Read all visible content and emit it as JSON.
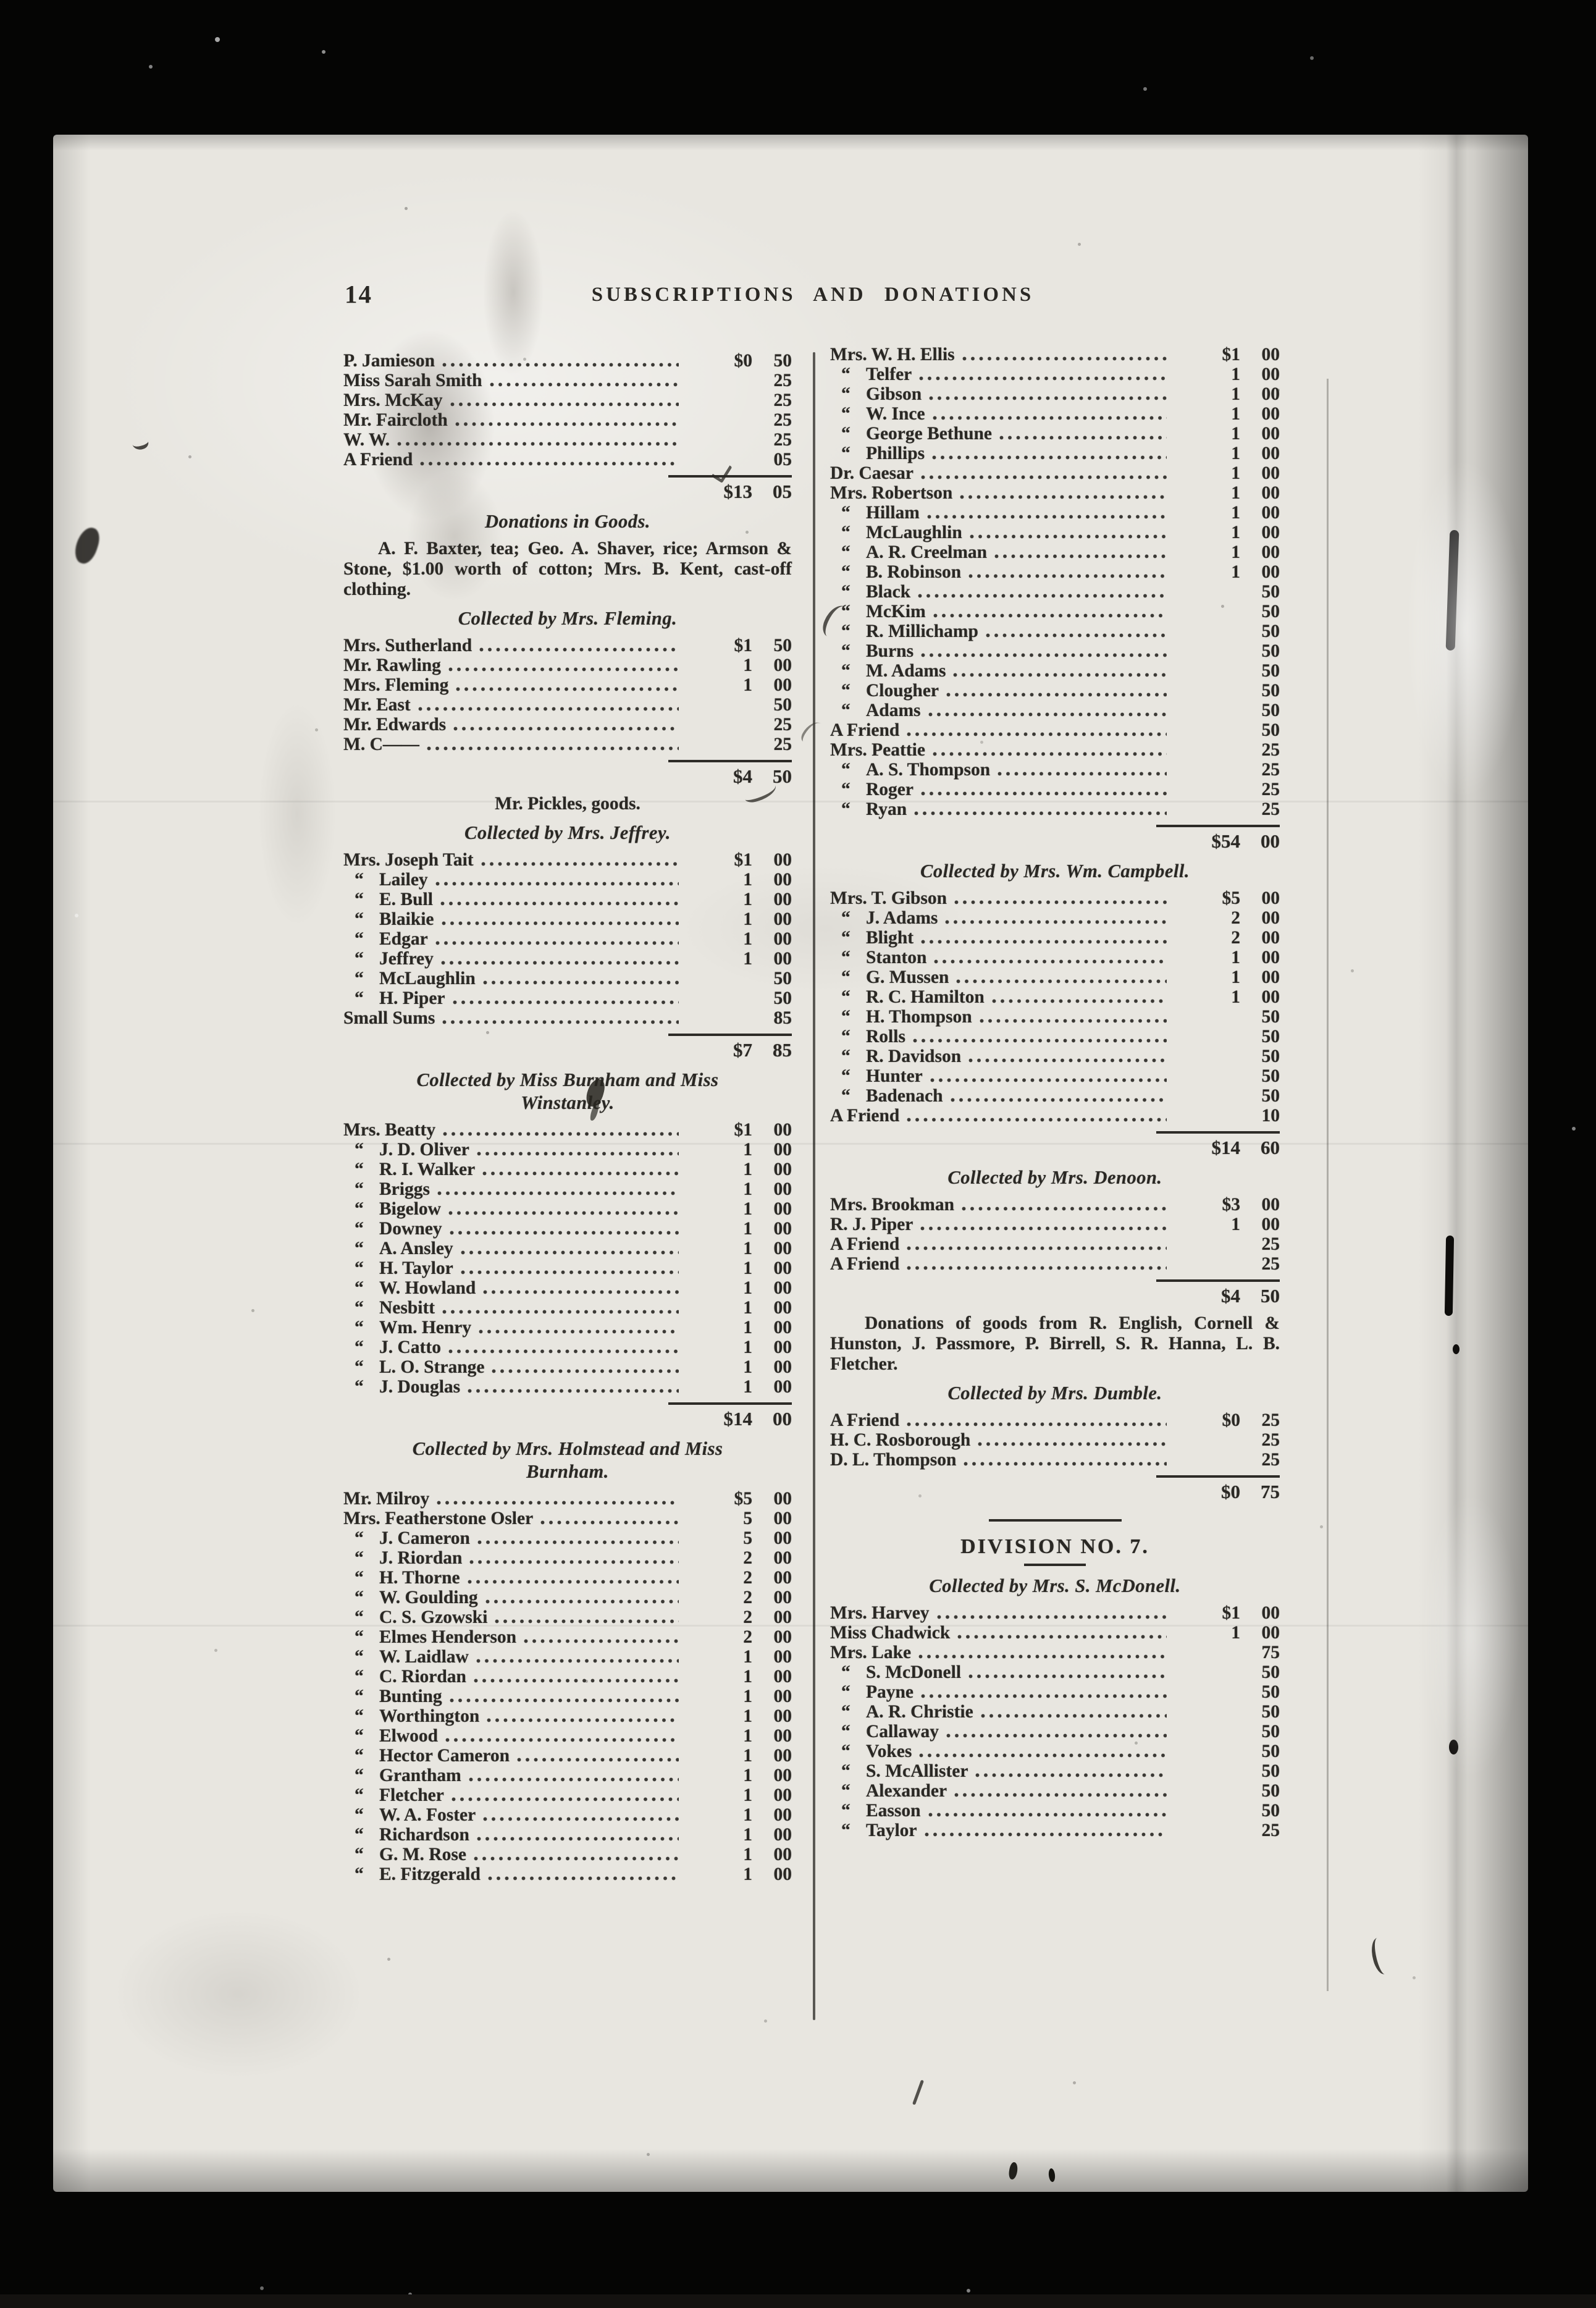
{
  "page": {
    "number": "14",
    "header": "SUBSCRIPTIONS AND DONATIONS"
  },
  "marks": {
    "ditto": "“"
  },
  "columns": [
    {
      "side": "left",
      "blocks": [
        {
          "type": "list",
          "rows": [
            {
              "name": "P. Jamieson",
              "amount": "$0 50"
            },
            {
              "name": "Miss Sarah Smith",
              "amount": "25"
            },
            {
              "name": "Mrs. McKay",
              "amount": "25"
            },
            {
              "name": "Mr. Faircloth",
              "amount": "25"
            },
            {
              "name": "W. W.",
              "amount": "25"
            },
            {
              "name": "A Friend",
              "amount": "05"
            }
          ],
          "total": "$13 05"
        },
        {
          "type": "heading",
          "text": "Donations in Goods."
        },
        {
          "type": "para",
          "text": "A. F. Baxter, tea; Geo. A. Shaver, rice; Armson & Stone, $1.00 worth of cotton; Mrs. B. Kent, cast-off clothing."
        },
        {
          "type": "heading",
          "text": "Collected by Mrs. Fleming."
        },
        {
          "type": "list",
          "rows": [
            {
              "name": "Mrs. Sutherland",
              "amount": "$1 50"
            },
            {
              "name": "Mr. Rawling",
              "amount": "1 00"
            },
            {
              "name": "Mrs. Fleming",
              "amount": "1 00"
            },
            {
              "name": "Mr. East",
              "amount": "50"
            },
            {
              "name": "Mr. Edwards",
              "amount": "25"
            },
            {
              "name": "M. C——",
              "amount": "25"
            }
          ],
          "total": "$4 50"
        },
        {
          "type": "center",
          "text": "Mr. Pickles, goods."
        },
        {
          "type": "heading",
          "text": "Collected by Mrs. Jeffrey."
        },
        {
          "type": "list",
          "rows": [
            {
              "name": "Mrs. Joseph Tait",
              "amount": "$1 00"
            },
            {
              "ditto": true,
              "name": "Lailey",
              "amount": "1 00"
            },
            {
              "ditto": true,
              "name": "E. Bull",
              "amount": "1 00"
            },
            {
              "ditto": true,
              "name": "Blaikie",
              "amount": "1 00"
            },
            {
              "ditto": true,
              "name": "Edgar",
              "amount": "1 00"
            },
            {
              "ditto": true,
              "name": "Jeffrey",
              "amount": "1 00"
            },
            {
              "ditto": true,
              "name": "McLaughlin",
              "amount": "50"
            },
            {
              "ditto": true,
              "name": "H. Piper",
              "amount": "50"
            },
            {
              "name": "Small Sums",
              "amount": "85"
            }
          ],
          "total": "$7 85"
        },
        {
          "type": "heading",
          "text": "Collected by Miss Burnham and Miss\nWinstanley."
        },
        {
          "type": "list",
          "rows": [
            {
              "name": "Mrs. Beatty",
              "amount": "$1 00"
            },
            {
              "ditto": true,
              "name": "J. D. Oliver",
              "amount": "1 00"
            },
            {
              "ditto": true,
              "name": "R. I. Walker",
              "amount": "1 00"
            },
            {
              "ditto": true,
              "name": "Briggs",
              "amount": "1 00"
            },
            {
              "ditto": true,
              "name": "Bigelow",
              "amount": "1 00"
            },
            {
              "ditto": true,
              "name": "Downey",
              "amount": "1 00"
            },
            {
              "ditto": true,
              "name": "A. Ansley",
              "amount": "1 00"
            },
            {
              "ditto": true,
              "name": "H. Taylor",
              "amount": "1 00"
            },
            {
              "ditto": true,
              "name": "W. Howland",
              "amount": "1 00"
            },
            {
              "ditto": true,
              "name": "Nesbitt",
              "amount": "1 00"
            },
            {
              "ditto": true,
              "name": "Wm. Henry",
              "amount": "1 00"
            },
            {
              "ditto": true,
              "name": "J. Catto",
              "amount": "1 00"
            },
            {
              "ditto": true,
              "name": "L. O. Strange",
              "amount": "1 00"
            },
            {
              "ditto": true,
              "name": "J. Douglas",
              "amount": "1 00"
            }
          ],
          "total": "$14 00"
        },
        {
          "type": "heading",
          "text": "Collected by Mrs. Holmstead and Miss\nBurnham."
        },
        {
          "type": "list",
          "rows": [
            {
              "name": "Mr. Milroy",
              "amount": "$5 00"
            },
            {
              "name": "Mrs. Featherstone Osler",
              "amount": "5 00"
            },
            {
              "ditto": true,
              "name": "J. Cameron",
              "amount": "5 00"
            },
            {
              "ditto": true,
              "name": "J. Riordan",
              "amount": "2 00"
            },
            {
              "ditto": true,
              "name": "H. Thorne",
              "amount": "2 00"
            },
            {
              "ditto": true,
              "name": "W. Goulding",
              "amount": "2 00"
            },
            {
              "ditto": true,
              "name": "C. S. Gzowski",
              "amount": "2 00"
            },
            {
              "ditto": true,
              "name": "Elmes Henderson",
              "amount": "2 00"
            },
            {
              "ditto": true,
              "name": "W. Laidlaw",
              "amount": "1 00"
            },
            {
              "ditto": true,
              "name": "C. Riordan",
              "amount": "1 00"
            },
            {
              "ditto": true,
              "name": "Bunting",
              "amount": "1 00"
            },
            {
              "ditto": true,
              "name": "Worthington",
              "amount": "1 00"
            },
            {
              "ditto": true,
              "name": "Elwood",
              "amount": "1 00"
            },
            {
              "ditto": true,
              "name": "Hector Cameron",
              "amount": "1 00"
            },
            {
              "ditto": true,
              "name": "Grantham",
              "amount": "1 00"
            },
            {
              "ditto": true,
              "name": "Fletcher",
              "amount": "1 00"
            },
            {
              "ditto": true,
              "name": "W. A. Foster",
              "amount": "1 00"
            },
            {
              "ditto": true,
              "name": "Richardson",
              "amount": "1 00"
            },
            {
              "ditto": true,
              "name": "G. M. Rose",
              "amount": "1 00"
            },
            {
              "ditto": true,
              "name": "E. Fitzgerald",
              "amount": "1 00"
            }
          ]
        }
      ]
    },
    {
      "side": "right",
      "blocks": [
        {
          "type": "list",
          "rows": [
            {
              "name": "Mrs. W. H. Ellis",
              "amount": "$1 00"
            },
            {
              "ditto": true,
              "name": "Telfer",
              "amount": "1 00"
            },
            {
              "ditto": true,
              "name": "Gibson",
              "amount": "1 00"
            },
            {
              "ditto": true,
              "name": "W. Ince",
              "amount": "1 00"
            },
            {
              "ditto": true,
              "name": "George Bethune",
              "amount": "1 00"
            },
            {
              "ditto": true,
              "name": "Phillips",
              "amount": "1 00"
            },
            {
              "name": "Dr. Caesar",
              "amount": "1 00"
            },
            {
              "name": "Mrs. Robertson",
              "amount": "1 00"
            },
            {
              "ditto": true,
              "name": "Hillam",
              "amount": "1 00"
            },
            {
              "ditto": true,
              "name": "McLaughlin",
              "amount": "1 00"
            },
            {
              "ditto": true,
              "name": "A. R. Creelman",
              "amount": "1 00"
            },
            {
              "ditto": true,
              "name": "B. Robinson",
              "amount": "1 00"
            },
            {
              "ditto": true,
              "name": "Black",
              "amount": "50"
            },
            {
              "ditto": true,
              "name": "McKim",
              "amount": "50"
            },
            {
              "ditto": true,
              "name": "R. Millichamp",
              "amount": "50"
            },
            {
              "ditto": true,
              "name": "Burns",
              "amount": "50"
            },
            {
              "ditto": true,
              "name": "M. Adams",
              "amount": "50"
            },
            {
              "ditto": true,
              "name": "Clougher",
              "amount": "50"
            },
            {
              "ditto": true,
              "name": "Adams",
              "amount": "50"
            },
            {
              "name": "A Friend",
              "amount": "50"
            },
            {
              "name": "Mrs. Peattie",
              "amount": "25"
            },
            {
              "ditto": true,
              "name": "A. S. Thompson",
              "amount": "25"
            },
            {
              "ditto": true,
              "name": "Roger",
              "amount": "25"
            },
            {
              "ditto": true,
              "name": "Ryan",
              "amount": "25"
            }
          ],
          "total": "$54 00"
        },
        {
          "type": "heading",
          "text": "Collected by Mrs. Wm. Campbell."
        },
        {
          "type": "list",
          "rows": [
            {
              "name": "Mrs. T. Gibson",
              "amount": "$5 00"
            },
            {
              "ditto": true,
              "name": "J. Adams",
              "amount": "2 00"
            },
            {
              "ditto": true,
              "name": "Blight",
              "amount": "2 00"
            },
            {
              "ditto": true,
              "name": "Stanton",
              "amount": "1 00"
            },
            {
              "ditto": true,
              "name": "G. Mussen",
              "amount": "1 00"
            },
            {
              "ditto": true,
              "name": "R. C. Hamilton",
              "amount": "1 00"
            },
            {
              "ditto": true,
              "name": "H. Thompson",
              "amount": "50"
            },
            {
              "ditto": true,
              "name": "Rolls",
              "amount": "50"
            },
            {
              "ditto": true,
              "name": "R. Davidson",
              "amount": "50"
            },
            {
              "ditto": true,
              "name": "Hunter",
              "amount": "50"
            },
            {
              "ditto": true,
              "name": "Badenach",
              "amount": "50"
            },
            {
              "name": "A Friend",
              "amount": "10"
            }
          ],
          "total": "$14 60"
        },
        {
          "type": "heading",
          "text": "Collected by Mrs. Denoon."
        },
        {
          "type": "list",
          "rows": [
            {
              "name": "Mrs. Brookman",
              "amount": "$3 00"
            },
            {
              "name": "R. J. Piper",
              "amount": "1 00"
            },
            {
              "name": "A Friend",
              "amount": "25"
            },
            {
              "name": "A Friend",
              "amount": "25"
            }
          ],
          "total": "$4 50"
        },
        {
          "type": "para",
          "text": "Donations of goods from R. English, Cornell & Hunston, J. Passmore, P. Birrell, S. R. Hanna, L. B. Fletcher."
        },
        {
          "type": "heading",
          "text": "Collected by Mrs. Dumble."
        },
        {
          "type": "list",
          "rows": [
            {
              "name": "A Friend",
              "amount": "$0 25"
            },
            {
              "name": "H. C. Rosborough",
              "amount": "25"
            },
            {
              "name": "D. L. Thompson",
              "amount": "25"
            }
          ],
          "total": "$0 75"
        },
        {
          "type": "rule"
        },
        {
          "type": "section",
          "text": "DIVISION NO. 7."
        },
        {
          "type": "heading",
          "text": "Collected by Mrs. S. McDonell."
        },
        {
          "type": "list",
          "rows": [
            {
              "name": "Mrs. Harvey",
              "amount": "$1 00"
            },
            {
              "name": "Miss Chadwick",
              "amount": "1 00"
            },
            {
              "name": "Mrs. Lake",
              "amount": "75"
            },
            {
              "ditto": true,
              "name": "S. McDonell",
              "amount": "50"
            },
            {
              "ditto": true,
              "name": "Payne",
              "amount": "50"
            },
            {
              "ditto": true,
              "name": "A. R. Christie",
              "amount": "50"
            },
            {
              "ditto": true,
              "name": "Callaway",
              "amount": "50"
            },
            {
              "ditto": true,
              "name": "Vokes",
              "amount": "50"
            },
            {
              "ditto": true,
              "name": "S. McAllister",
              "amount": "50"
            },
            {
              "ditto": true,
              "name": "Alexander",
              "amount": "50"
            },
            {
              "ditto": true,
              "name": "Easson",
              "amount": "50"
            },
            {
              "ditto": true,
              "name": "Taylor",
              "amount": "25"
            }
          ]
        }
      ]
    }
  ]
}
